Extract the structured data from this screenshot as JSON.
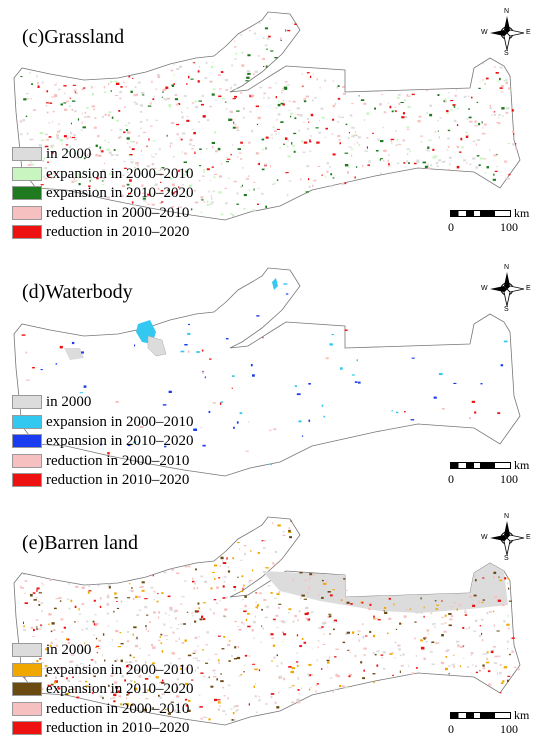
{
  "compass_labels": {
    "north": "N",
    "south": "S",
    "east": "E",
    "west": "W"
  },
  "scale_bar": {
    "start": "0",
    "end": "100",
    "unit": "km"
  },
  "colors": {
    "region_outline": "#777777",
    "in_2000_gray": "#dcdcdc"
  },
  "panels": [
    {
      "title": "(c)Grassland",
      "legend": [
        {
          "label": "in 2000",
          "color": "#dcdcdc"
        },
        {
          "label": "expansion in 2000–2010",
          "color": "#c8f5c0"
        },
        {
          "label": "expansion in 2010–2020",
          "color": "#1f7a1f"
        },
        {
          "label": "reduction in 2000–2010",
          "color": "#f7c0c0"
        },
        {
          "label": "reduction in 2010–2020",
          "color": "#ee1111"
        }
      ]
    },
    {
      "title": "(d)Waterbody",
      "legend": [
        {
          "label": "in 2000",
          "color": "#dcdcdc"
        },
        {
          "label": "expansion in 2000–2010",
          "color": "#33c8f0"
        },
        {
          "label": "expansion in 2010–2020",
          "color": "#1a3cf0"
        },
        {
          "label": "reduction in 2000–2010",
          "color": "#f7c0c0"
        },
        {
          "label": "reduction in 2010–2020",
          "color": "#ee1111"
        }
      ]
    },
    {
      "title": "(e)Barren land",
      "legend": [
        {
          "label": "in 2000",
          "color": "#dcdcdc"
        },
        {
          "label": "expansion in 2000–2010",
          "color": "#f0a800"
        },
        {
          "label": "expansion in 2010–2020",
          "color": "#6b4a12"
        },
        {
          "label": "reduction in 2000–2010",
          "color": "#f7c0c0"
        },
        {
          "label": "reduction in 2010–2020",
          "color": "#ee1111"
        }
      ]
    }
  ]
}
